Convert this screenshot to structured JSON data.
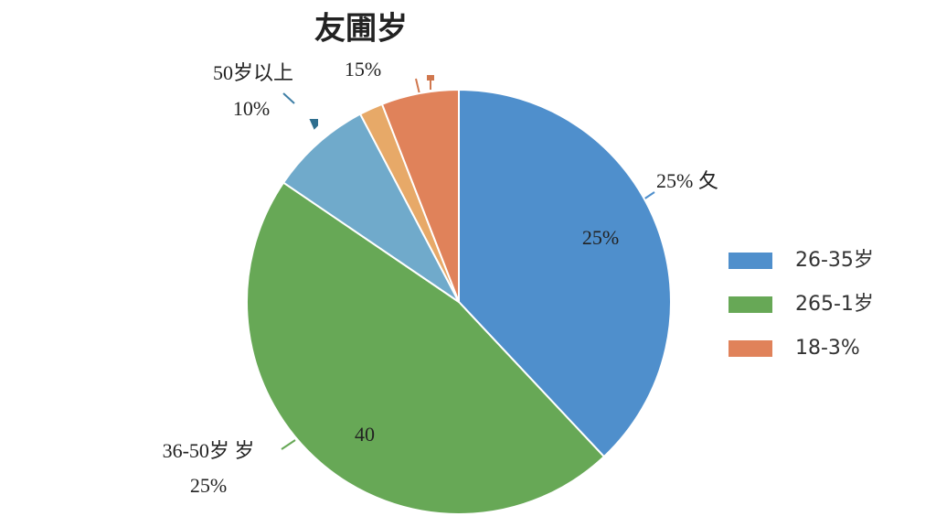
{
  "chart_data": {
    "type": "pie",
    "title": "友圃岁",
    "categories": [
      "26-35岁",
      "265-1岁",
      null,
      null,
      "18-3%"
    ],
    "values": [
      38,
      46.5,
      7.8,
      1.8,
      5.9
    ],
    "colors": [
      "#4f8fcc",
      "#67a856",
      "#70aacb",
      "#e7a968",
      "#e0825a"
    ],
    "annotations": [
      "50岁以上",
      "10%",
      "15%",
      "25% 夂",
      "25%",
      "40",
      "36-50岁 岁",
      "25%"
    ]
  }
}
